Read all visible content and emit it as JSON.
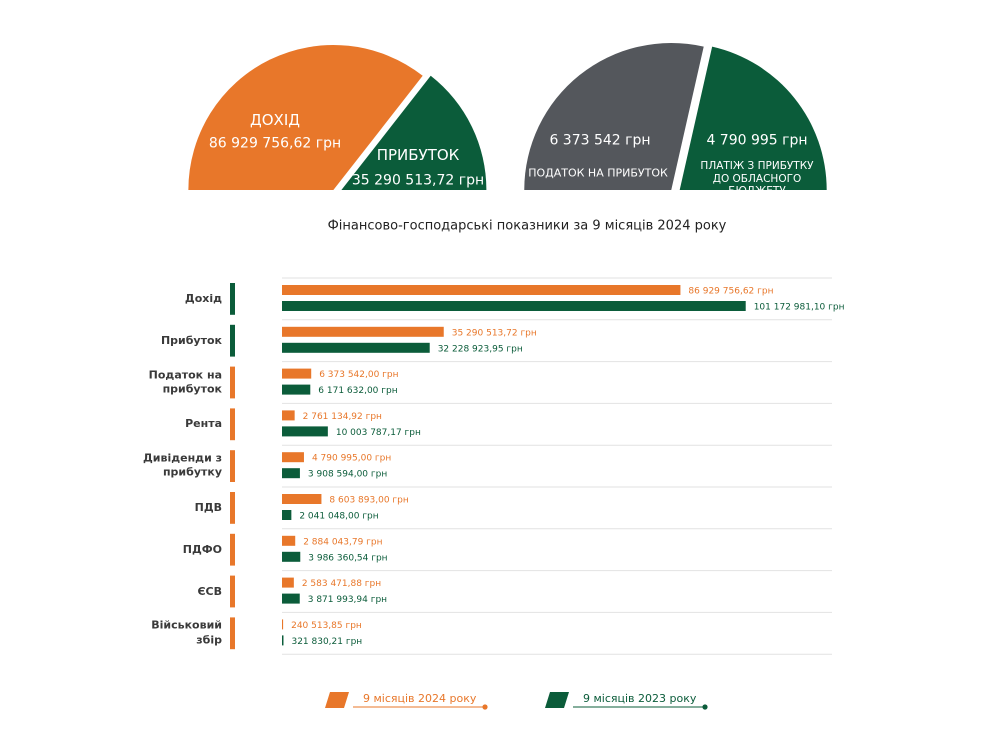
{
  "chart_data": [
    {
      "type": "pie",
      "categories": [
        "ДОХІД",
        "ПРИБУТОК"
      ],
      "values": [
        86929756.62,
        35290513.72
      ],
      "value_labels": [
        "86 929 756,62 грн",
        "35 290 513,72 грн"
      ],
      "colors": [
        "#e8772a",
        "#0b5c3a"
      ]
    },
    {
      "type": "pie",
      "categories": [
        "ПОДАТОК НА ПРИБУТОК",
        "ПЛАТІЖ З ПРИБУТКУ ДО ОБЛАСНОГО БЮДЖЕТУ"
      ],
      "values": [
        6373542,
        4790995
      ],
      "value_labels": [
        "6 373 542 грн",
        "4 790 995 грн"
      ],
      "colors": [
        "#54575c",
        "#0b5c3a"
      ]
    },
    {
      "type": "bar",
      "orientation": "horizontal",
      "title": "Фінансово-господарські показники за 9 місяців 2024 року",
      "categories": [
        "Дохід",
        "Прибуток",
        "Податок на прибуток",
        "Рента",
        "Дивіденди з прибутку",
        "ПДВ",
        "ПДФО",
        "ЄСВ",
        "Військовий збір"
      ],
      "series": [
        {
          "name": "9 місяців 2024 року",
          "color": "#e8772a",
          "values": [
            86929756.62,
            35290513.72,
            6373542.0,
            2761134.92,
            4790995.0,
            8603893.0,
            2884043.79,
            2583471.88,
            240513.85
          ],
          "value_labels": [
            "86 929 756,62 грн",
            "35 290 513,72 грн",
            "6 373 542,00 грн",
            "2 761 134,92 грн",
            "4 790 995,00 грн",
            "8 603 893,00 грн",
            "2 884 043,79 грн",
            "2 583 471,88 грн",
            "240 513,85 грн"
          ]
        },
        {
          "name": "9 місяців 2023 року",
          "color": "#0b5c3a",
          "values": [
            101172981.1,
            32228923.95,
            6171632.0,
            10003787.17,
            3908594.0,
            2041048.0,
            3986360.54,
            3871993.94,
            321830.21
          ],
          "value_labels": [
            "101 172 981,10 грн",
            "32 228 923,95 грн",
            "6 171 632,00 грн",
            "10 003 787,17 грн",
            "3 908 594,00 грн",
            "2 041 048,00 грн",
            "3 986 360,54 грн",
            "3 871 993,94 грн",
            "321 830,21 грн"
          ]
        }
      ],
      "xlim": [
        0,
        120000000
      ],
      "grid": true,
      "legend": "bottom"
    }
  ]
}
